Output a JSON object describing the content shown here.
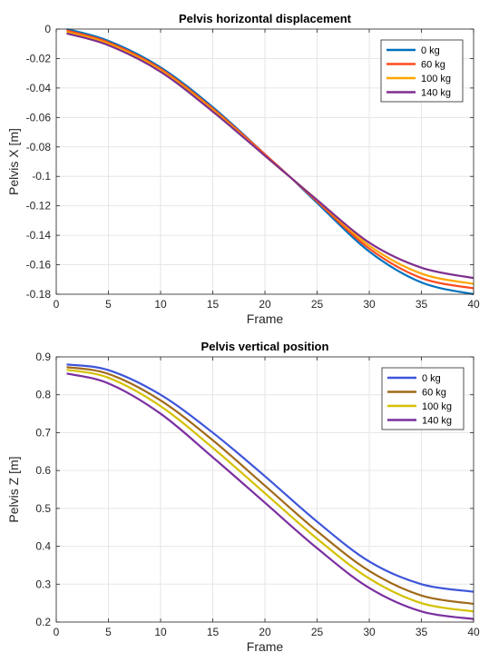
{
  "chart_data": [
    {
      "type": "line",
      "title": "Pelvis horizontal displacement",
      "xlabel": "Frame",
      "ylabel": "Pelvis X [m]",
      "xlim": [
        0,
        40
      ],
      "ylim": [
        -0.18,
        0
      ],
      "xticks": [
        0,
        5,
        10,
        15,
        20,
        25,
        30,
        35,
        40
      ],
      "yticks": [
        0,
        -0.02,
        -0.04,
        -0.06,
        -0.08,
        -0.1,
        -0.12,
        -0.14,
        -0.16,
        -0.18
      ],
      "grid": true,
      "legend_position": "top-right",
      "x": [
        1,
        5,
        10,
        15,
        20,
        22.5,
        25,
        30,
        35,
        40
      ],
      "series": [
        {
          "name": "0 kg",
          "color": "#0072BD",
          "values": [
            0.0,
            -0.008,
            -0.026,
            -0.053,
            -0.085,
            -0.101,
            -0.118,
            -0.151,
            -0.172,
            -0.18
          ]
        },
        {
          "name": "60 kg",
          "color": "#FF4B1F",
          "values": [
            -0.001,
            -0.009,
            -0.027,
            -0.054,
            -0.085,
            -0.101,
            -0.117,
            -0.149,
            -0.169,
            -0.176
          ]
        },
        {
          "name": "100 kg",
          "color": "#FFA500",
          "values": [
            -0.002,
            -0.01,
            -0.028,
            -0.055,
            -0.086,
            -0.101,
            -0.116,
            -0.147,
            -0.166,
            -0.173
          ]
        },
        {
          "name": "140 kg",
          "color": "#7E2F8E",
          "values": [
            -0.003,
            -0.011,
            -0.029,
            -0.056,
            -0.086,
            -0.101,
            -0.116,
            -0.145,
            -0.162,
            -0.169
          ]
        }
      ]
    },
    {
      "type": "line",
      "title": "Pelvis vertical position",
      "xlabel": "Frame",
      "ylabel": "Pelvis Z [m]",
      "xlim": [
        0,
        40
      ],
      "ylim": [
        0.2,
        0.9
      ],
      "xticks": [
        0,
        5,
        10,
        15,
        20,
        25,
        30,
        35,
        40
      ],
      "yticks": [
        0.2,
        0.3,
        0.4,
        0.5,
        0.6,
        0.7,
        0.8,
        0.9
      ],
      "grid": true,
      "legend_position": "top-right",
      "x": [
        1,
        5,
        10,
        15,
        20,
        25,
        30,
        35,
        40
      ],
      "series": [
        {
          "name": "0 kg",
          "color": "#3D55D9",
          "values": [
            0.88,
            0.865,
            0.8,
            0.7,
            0.585,
            0.465,
            0.36,
            0.3,
            0.28
          ]
        },
        {
          "name": "60 kg",
          "color": "#A06A1A",
          "values": [
            0.873,
            0.855,
            0.785,
            0.68,
            0.56,
            0.44,
            0.335,
            0.27,
            0.248
          ]
        },
        {
          "name": "100 kg",
          "color": "#D4C000",
          "values": [
            0.866,
            0.845,
            0.77,
            0.66,
            0.54,
            0.42,
            0.315,
            0.25,
            0.228
          ]
        },
        {
          "name": "140 kg",
          "color": "#7A2EA0",
          "values": [
            0.856,
            0.83,
            0.75,
            0.635,
            0.515,
            0.395,
            0.29,
            0.228,
            0.208
          ]
        }
      ]
    }
  ]
}
